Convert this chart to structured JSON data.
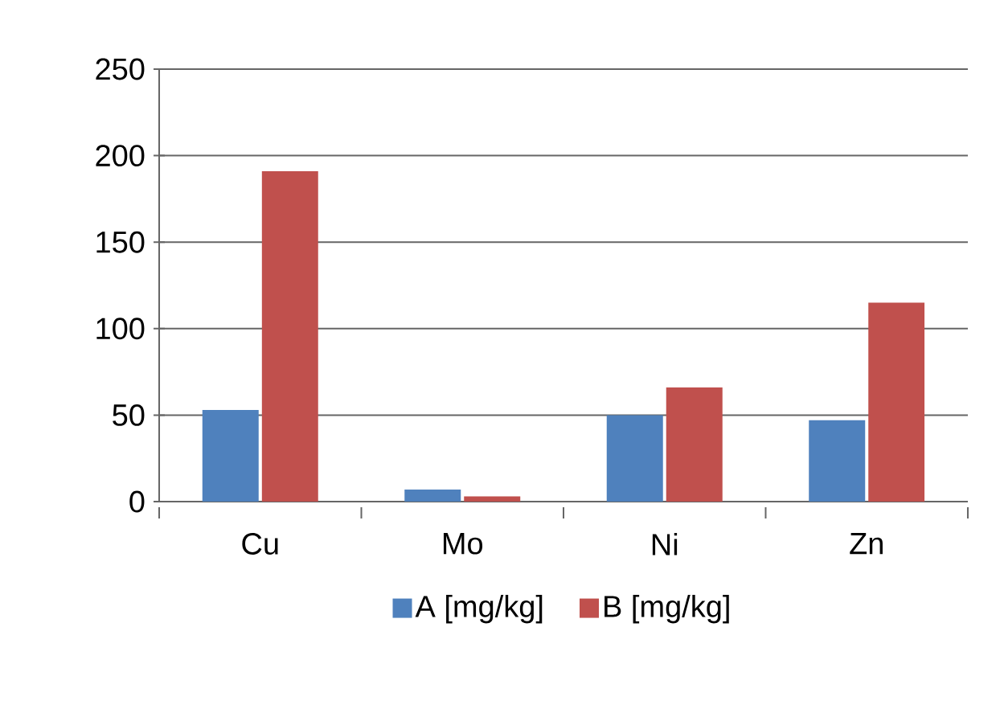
{
  "chart_data": {
    "type": "bar",
    "categories": [
      "Cu",
      "Mo",
      "Ni",
      "Zn"
    ],
    "series": [
      {
        "name": "A [mg/kg]",
        "color": "#4f81bd",
        "values": [
          53,
          7,
          50,
          47
        ]
      },
      {
        "name": "B [mg/kg]",
        "color": "#c0504d",
        "values": [
          191,
          3,
          66,
          115
        ]
      }
    ],
    "ylim": [
      0,
      250
    ],
    "yticks": [
      0,
      50,
      100,
      150,
      200,
      250
    ],
    "grid": "y",
    "legend": "bottom"
  }
}
